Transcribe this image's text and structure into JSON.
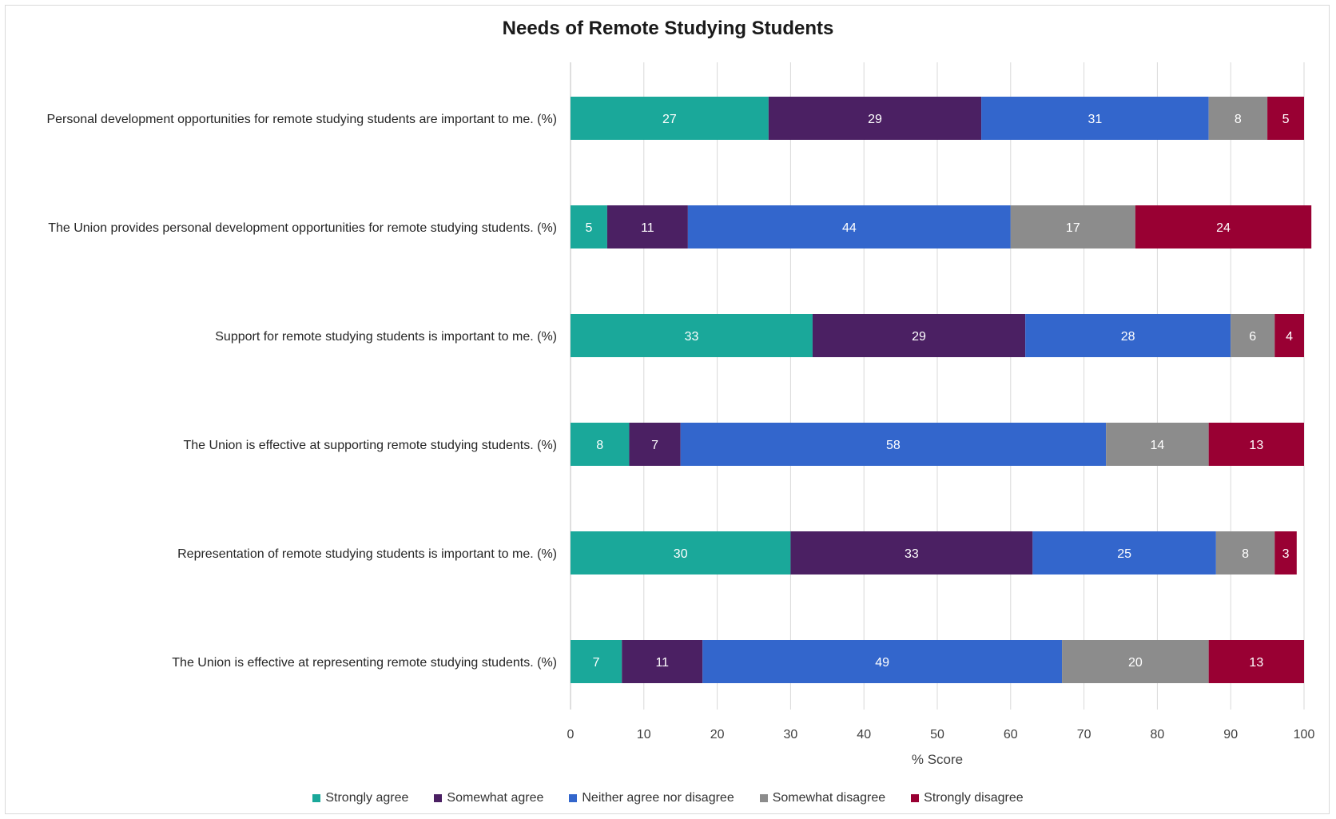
{
  "chart_data": {
    "type": "bar",
    "orientation": "horizontal",
    "stacked": true,
    "title": "Needs of Remote Studying Students",
    "xlabel": "% Score",
    "ylabel": "",
    "xlim": [
      0,
      100
    ],
    "xticks": [
      0,
      10,
      20,
      30,
      40,
      50,
      60,
      70,
      80,
      90,
      100
    ],
    "grid": true,
    "legend_position": "bottom",
    "categories": [
      "Personal development opportunities for remote studying students are important to me. (%)",
      "The Union provides personal development opportunities for remote studying students. (%)",
      "Support for remote studying students is important to me. (%)",
      "The Union is effective at supporting remote studying students. (%)",
      "Representation of remote studying students is important to me. (%)",
      "The Union is effective at representing remote studying students. (%)"
    ],
    "series": [
      {
        "name": "Strongly agree",
        "color": "#1AA89A",
        "values": [
          27,
          5,
          33,
          8,
          30,
          7
        ]
      },
      {
        "name": "Somewhat agree",
        "color": "#4B2063",
        "values": [
          29,
          11,
          29,
          7,
          33,
          11
        ]
      },
      {
        "name": "Neither agree nor disagree",
        "color": "#3366CC",
        "values": [
          31,
          44,
          28,
          58,
          25,
          49
        ]
      },
      {
        "name": "Somewhat disagree",
        "color": "#8C8C8C",
        "values": [
          8,
          17,
          6,
          14,
          8,
          20
        ]
      },
      {
        "name": "Strongly disagree",
        "color": "#990033",
        "values": [
          5,
          24,
          4,
          13,
          3,
          13
        ]
      }
    ]
  }
}
